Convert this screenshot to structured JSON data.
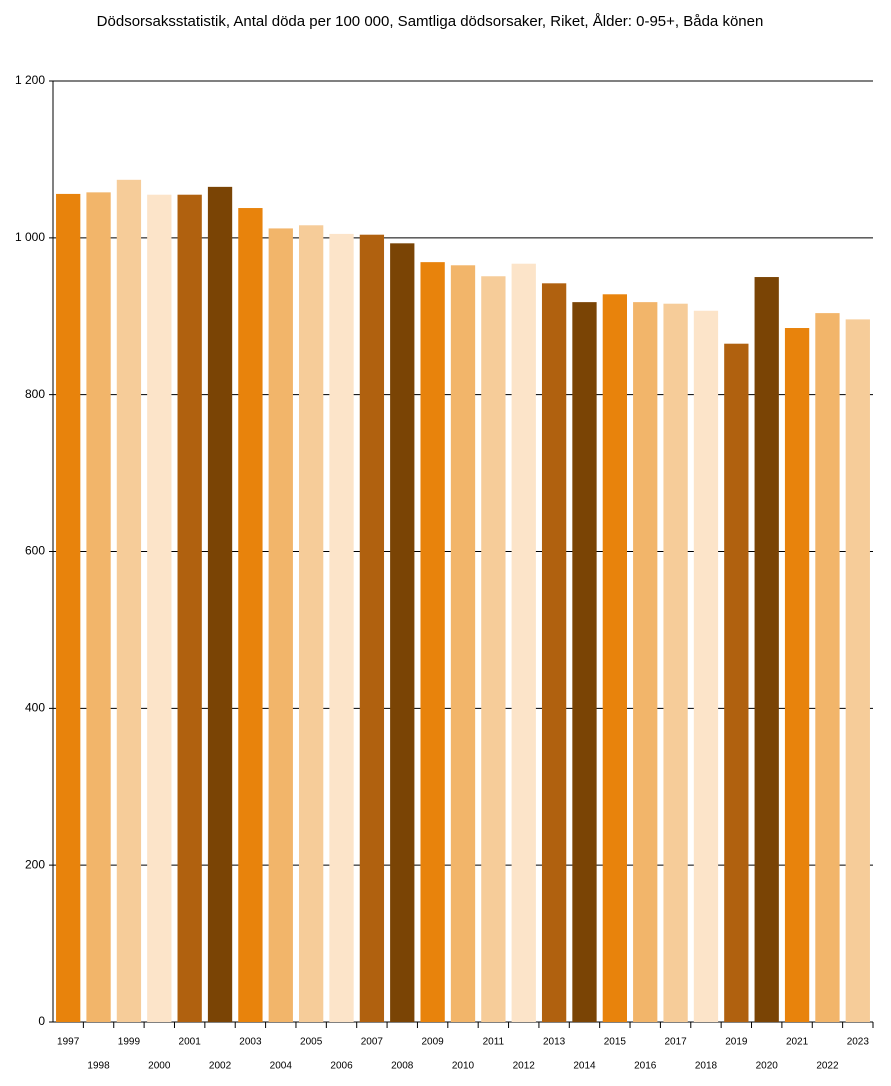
{
  "chart_data": {
    "type": "bar",
    "title": "Dödsorsaksstatistik, Antal döda per 100 000, Samtliga dödsorsaker, Riket, Ålder: 0-95+, Båda könen",
    "categories": [
      "1997",
      "1998",
      "1999",
      "2000",
      "2001",
      "2002",
      "2003",
      "2004",
      "2005",
      "2006",
      "2007",
      "2008",
      "2009",
      "2010",
      "2011",
      "2012",
      "2013",
      "2014",
      "2015",
      "2016",
      "2017",
      "2018",
      "2019",
      "2020",
      "2021",
      "2022",
      "2023"
    ],
    "values": [
      1056,
      1058,
      1074,
      1055,
      1055,
      1065,
      1038,
      1012,
      1016,
      1005,
      1004,
      993,
      969,
      965,
      951,
      967,
      942,
      918,
      928,
      918,
      916,
      907,
      865,
      950,
      885,
      904,
      896
    ],
    "colors": [
      "#e8830c",
      "#f2b56a",
      "#f6cc99",
      "#fce4c9",
      "#b0610f",
      "#7a4405"
    ],
    "ylim": [
      0,
      1200
    ],
    "yticks": [
      0,
      200,
      400,
      600,
      800,
      {
        "value": 1000,
        "label": "1 000"
      },
      {
        "value": 1200,
        "label": "1 200"
      }
    ],
    "grid": true
  }
}
